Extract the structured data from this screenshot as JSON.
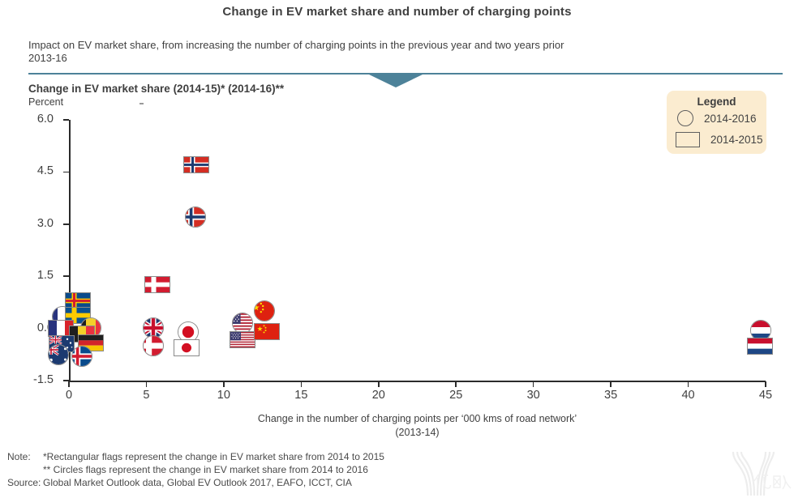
{
  "page_title": "Change in EV market share and number of charging points",
  "header": {
    "subtitle_line1": "Impact on EV market share, from increasing the number of charging points in the previous year and two years prior",
    "subtitle_line2": "2013-16"
  },
  "section": {
    "heading": "Change in EV market share (2014-15)* (2014-16)**",
    "unit_label": "Percent"
  },
  "legend": {
    "title": "Legend",
    "items": [
      {
        "shape": "circle",
        "label": "2014-2016"
      },
      {
        "shape": "rect",
        "label": "2014-2015"
      }
    ]
  },
  "chart_data": {
    "type": "scatter",
    "title": "Change in EV market share and number of charging points",
    "xlabel": "Change in the number of charging points per ‘000 kms of road network’",
    "xlabel_sub": "(2013-14)",
    "ylabel": "Percent",
    "xlim": [
      0,
      45
    ],
    "ylim": [
      -1.5,
      6.0
    ],
    "xticks": [
      "0",
      "5",
      "10",
      "15",
      "20",
      "25",
      "30",
      "35",
      "40",
      "45"
    ],
    "yticks": [
      "6.0",
      "4.5",
      "3.0",
      "1.5",
      "0.0",
      "-1.5"
    ],
    "grid": false,
    "legend_position": "top-right",
    "marker_note": "rect flag = change 2014-15, circle flag = change 2014-16",
    "points": [
      {
        "country": "France",
        "flag": "france",
        "shape": "circle",
        "x": -0.4,
        "y": 0.35
      },
      {
        "country": "Iceland",
        "flag": "iceland_gold",
        "shape": "rect",
        "x": 0.6,
        "y": 0.8
      },
      {
        "country": "Sweden",
        "flag": "sweden",
        "shape": "rect",
        "x": 0.6,
        "y": 0.37
      },
      {
        "country": "France",
        "flag": "france",
        "shape": "rect",
        "x": -0.5,
        "y": 0.0
      },
      {
        "country": "Belgium",
        "flag": "belgium",
        "shape": "circle",
        "x": 1.4,
        "y": 0.02
      },
      {
        "country": "Belgium",
        "flag": "belgium",
        "shape": "rect",
        "x": 0.85,
        "y": -0.17
      },
      {
        "country": "Germany",
        "flag": "germany",
        "shape": "rect",
        "x": 1.4,
        "y": -0.42
      },
      {
        "country": "Australia",
        "flag": "australia",
        "shape": "rect",
        "x": -0.45,
        "y": -0.45
      },
      {
        "country": "Australia",
        "flag": "australia",
        "shape": "circle",
        "x": -0.7,
        "y": -0.75
      },
      {
        "country": "Iceland",
        "flag": "iceland",
        "shape": "circle",
        "x": 0.85,
        "y": -0.8
      },
      {
        "country": "Denmark",
        "flag": "denmark",
        "shape": "rect",
        "x": 5.7,
        "y": 1.25
      },
      {
        "country": "United Kingdom",
        "flag": "uk",
        "shape": "circle",
        "x": 5.45,
        "y": 0.02
      },
      {
        "country": "Denmark",
        "flag": "denmark",
        "shape": "circle",
        "x": 5.45,
        "y": -0.5
      },
      {
        "country": "Japan",
        "flag": "japan",
        "shape": "circle",
        "x": 7.7,
        "y": -0.1
      },
      {
        "country": "Japan",
        "flag": "japan",
        "shape": "rect",
        "x": 7.6,
        "y": -0.55
      },
      {
        "country": "Norway",
        "flag": "norway",
        "shape": "rect",
        "x": 8.25,
        "y": 4.7
      },
      {
        "country": "Norway",
        "flag": "norway",
        "shape": "circle",
        "x": 8.15,
        "y": 3.2
      },
      {
        "country": "China",
        "flag": "china",
        "shape": "circle",
        "x": 12.6,
        "y": 0.5
      },
      {
        "country": "United States",
        "flag": "usa",
        "shape": "circle",
        "x": 11.2,
        "y": 0.15
      },
      {
        "country": "United States",
        "flag": "usa",
        "shape": "rect",
        "x": 11.2,
        "y": -0.33
      },
      {
        "country": "China",
        "flag": "china",
        "shape": "rect",
        "x": 12.8,
        "y": -0.1
      },
      {
        "country": "Netherlands",
        "flag": "netherlands",
        "shape": "circle",
        "x": 44.7,
        "y": -0.05
      },
      {
        "country": "Netherlands",
        "flag": "netherlands",
        "shape": "rect",
        "x": 44.65,
        "y": -0.5
      }
    ]
  },
  "notes": {
    "note_label": "Note:",
    "note_line1": "*Rectangular flags represent the change in EV market share from 2014 to 2015",
    "note_line2": "** Circles flags represent the change in EV market share from 2014 to 2016",
    "source_label": "Source:",
    "source_text": "Global Market Outlook data, Global EV Outlook 2017, EAFO, ICCT, CIA"
  },
  "watermark": {
    "text": "亿欧"
  },
  "colors": {
    "accent_teal": "#4d8299",
    "legend_bg": "#fbecd0",
    "axis": "#2b2b2b",
    "text_dark": "#3f3f3f",
    "text_mid": "#4a4a4a",
    "marker_border": "#8a8a8a"
  }
}
